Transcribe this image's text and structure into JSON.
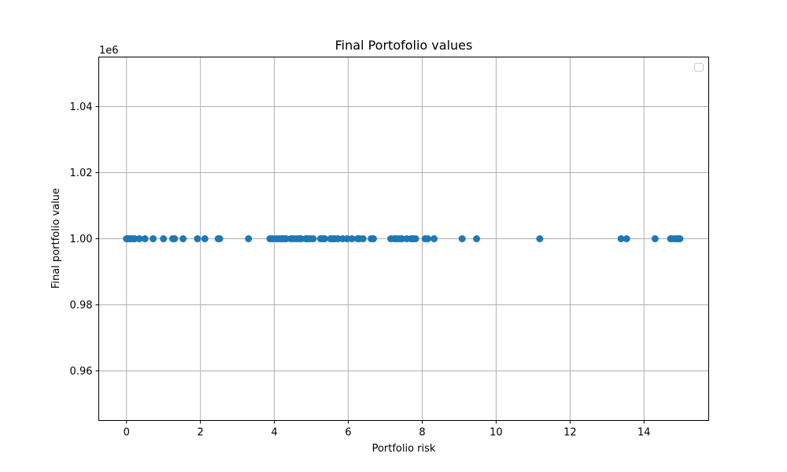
{
  "chart_data": {
    "type": "scatter",
    "title": "Final Portofolio values",
    "xlabel": "Portfolio risk",
    "ylabel": "Final portfolio value",
    "y_offset_label": "1e6",
    "xlim": [
      -0.75,
      15.75
    ],
    "ylim": [
      0.945,
      1.055
    ],
    "x_ticks": [
      0,
      2,
      4,
      6,
      8,
      10,
      12,
      14
    ],
    "x_tick_labels": [
      "0",
      "2",
      "4",
      "6",
      "8",
      "10",
      "12",
      "14"
    ],
    "y_ticks": [
      0.96,
      0.98,
      1.0,
      1.02,
      1.04
    ],
    "y_tick_labels": [
      "0.96",
      "0.98",
      "1.00",
      "1.02",
      "1.04"
    ],
    "grid": true,
    "legend": {
      "placement": "upper-right",
      "entries": []
    },
    "series": [
      {
        "color": "#1f77b4",
        "x": [
          0.0,
          0.03,
          0.08,
          0.12,
          0.18,
          0.22,
          0.35,
          0.5,
          0.72,
          1.0,
          1.25,
          1.3,
          1.53,
          1.92,
          2.12,
          2.48,
          2.52,
          3.3,
          3.88,
          3.95,
          4.05,
          4.12,
          4.18,
          4.22,
          4.27,
          4.32,
          4.45,
          4.52,
          4.6,
          4.68,
          4.72,
          4.85,
          4.9,
          4.97,
          5.05,
          5.25,
          5.3,
          5.36,
          5.52,
          5.58,
          5.63,
          5.72,
          5.85,
          5.97,
          6.1,
          6.25,
          6.3,
          6.4,
          6.62,
          6.68,
          7.15,
          7.25,
          7.32,
          7.4,
          7.45,
          7.58,
          7.7,
          7.75,
          7.82,
          8.08,
          8.15,
          8.32,
          9.08,
          9.47,
          11.18,
          13.38,
          13.53,
          14.3,
          14.72,
          14.8,
          14.88,
          14.93,
          14.97
        ]
      }
    ],
    "y_value_for_all_points": 1.0
  }
}
